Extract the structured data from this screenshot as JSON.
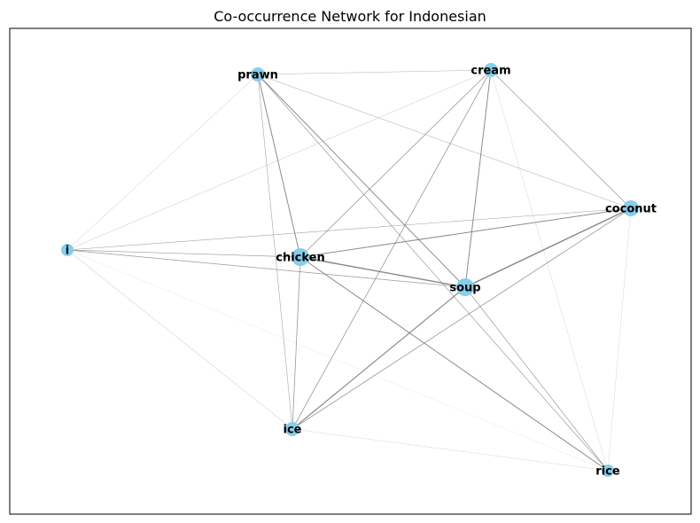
{
  "title": "Co-occurrence Network for Indonesian",
  "colors": {
    "node": "#87ceeb",
    "edge": "#808080",
    "frame": "#000000"
  },
  "nodes": [
    {
      "id": "prawn",
      "label": "prawn"
    },
    {
      "id": "cream",
      "label": "cream"
    },
    {
      "id": "coconut",
      "label": "coconut"
    },
    {
      "id": "i",
      "label": "i"
    },
    {
      "id": "chicken",
      "label": "chicken"
    },
    {
      "id": "soup",
      "label": "soup"
    },
    {
      "id": "ice",
      "label": "ice"
    },
    {
      "id": "rice",
      "label": "rice"
    }
  ],
  "edges": [
    {
      "source": "prawn",
      "target": "cream"
    },
    {
      "source": "prawn",
      "target": "coconut"
    },
    {
      "source": "prawn",
      "target": "i"
    },
    {
      "source": "prawn",
      "target": "chicken"
    },
    {
      "source": "prawn",
      "target": "soup"
    },
    {
      "source": "prawn",
      "target": "ice"
    },
    {
      "source": "prawn",
      "target": "rice"
    },
    {
      "source": "cream",
      "target": "coconut"
    },
    {
      "source": "cream",
      "target": "i"
    },
    {
      "source": "cream",
      "target": "chicken"
    },
    {
      "source": "cream",
      "target": "soup"
    },
    {
      "source": "cream",
      "target": "ice"
    },
    {
      "source": "cream",
      "target": "rice"
    },
    {
      "source": "coconut",
      "target": "i"
    },
    {
      "source": "coconut",
      "target": "chicken"
    },
    {
      "source": "coconut",
      "target": "soup"
    },
    {
      "source": "coconut",
      "target": "ice"
    },
    {
      "source": "coconut",
      "target": "rice"
    },
    {
      "source": "i",
      "target": "chicken"
    },
    {
      "source": "i",
      "target": "soup"
    },
    {
      "source": "i",
      "target": "ice"
    },
    {
      "source": "i",
      "target": "rice"
    },
    {
      "source": "chicken",
      "target": "soup"
    },
    {
      "source": "chicken",
      "target": "ice"
    },
    {
      "source": "chicken",
      "target": "rice"
    },
    {
      "source": "soup",
      "target": "ice"
    },
    {
      "source": "soup",
      "target": "rice"
    },
    {
      "source": "ice",
      "target": "rice"
    }
  ]
}
